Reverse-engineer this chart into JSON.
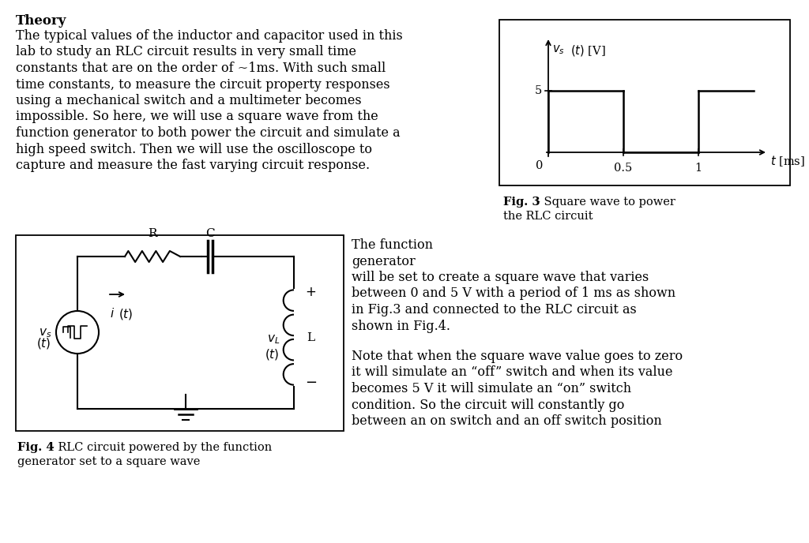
{
  "bg_color": "#ffffff",
  "title_text": "Theory",
  "body_text_lines": [
    "The typical values of the inductor and capacitor used in this",
    "lab to study an RLC circuit results in very small time",
    "constants that are on the order of ~1ms. With such small",
    "time constants, to measure the circuit property responses",
    "using a mechanical switch and a multimeter becomes",
    "impossible. So here, we will use a square wave from the",
    "function generator to both power the circuit and simulate a",
    "high speed switch. Then we will use the oscilloscope to",
    "capture and measure the fast varying circuit response."
  ],
  "fig3_caption": "Fig. 3 - Square wave to power\nthe RLC circuit",
  "fig4_caption_bold": "Fig. 4",
  "fig4_caption_rest": " - RLC circuit powered by the function\ngenerator set to a square wave",
  "right_text_para1": "The function\ngenerator\nwill be set to create a square wave that varies\nbetween 0 and 5 V with a period of 1 ms as shown\nin Fig.3 and connected to the RLC circuit as\nshown in Fig.4.",
  "right_text_para2": "Note that when the square wave value goes to zero\nit will simulate an “off” switch and when its value\nbecomes 5 V it will simulate an “on” switch\ncondition. So the circuit will constantly go\nbetween an on switch and an off switch position",
  "font_size_body": 11.5,
  "font_size_small": 10.5
}
